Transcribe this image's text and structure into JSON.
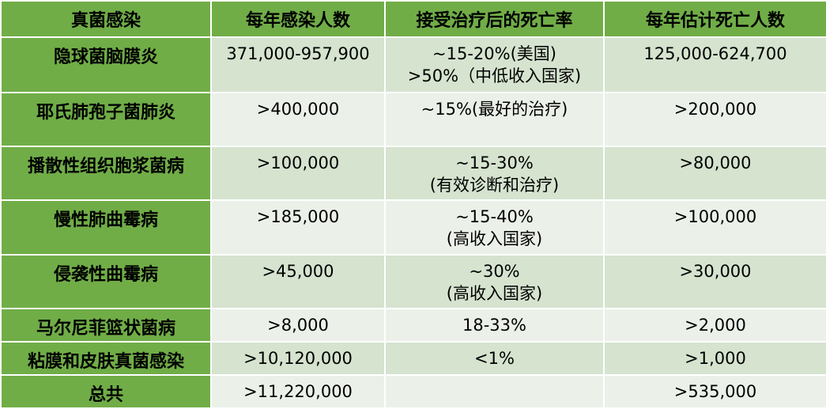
{
  "headers": [
    "真菌感染",
    "每年感染人数",
    "接受治疗后的死亡率",
    "每年估计死亡人数"
  ],
  "rows": [
    {
      "name": "隐球菌脑膜炎",
      "infections": "371,000-957,900",
      "mortality": [
        "~15-20%(美国)",
        ">50%（中低收入国家)"
      ],
      "deaths": "125,000-624,700"
    },
    {
      "name": "耶氏肺孢子菌肺炎",
      "infections": ">400,000",
      "mortality": [
        "~15%(最好的治疗)"
      ],
      "deaths": ">200,000"
    },
    {
      "name": "播散性组织胞浆菌病",
      "infections": ">100,000",
      "mortality": [
        "~15-30%",
        "(有效诊断和治疗)"
      ],
      "deaths": ">80,000"
    },
    {
      "name": "慢性肺曲霉病",
      "infections": ">185,000",
      "mortality": [
        "~15-40%",
        "(高收入国家)"
      ],
      "deaths": ">100,000"
    },
    {
      "name": "侵袭性曲霉病",
      "infections": ">45,000",
      "mortality": [
        "~30%",
        "(高收入国家)"
      ],
      "deaths": ">30,000"
    },
    {
      "name": "马尔尼菲篮状菌病",
      "infections": ">8,000",
      "mortality": [
        "18-33%"
      ],
      "deaths": ">2,000"
    },
    {
      "name": "粘膜和皮肤真菌感染",
      "infections": ">10,120,000",
      "mortality": [
        "<1%"
      ],
      "deaths": ">1,000"
    },
    {
      "name": "总共",
      "infections": ">11,220,000",
      "mortality": [
        ""
      ],
      "deaths": ">535,000"
    }
  ],
  "colors": {
    "header_green": "#70ad47",
    "row_dark": "#d5e3cf",
    "row_light": "#ebf1e9"
  }
}
